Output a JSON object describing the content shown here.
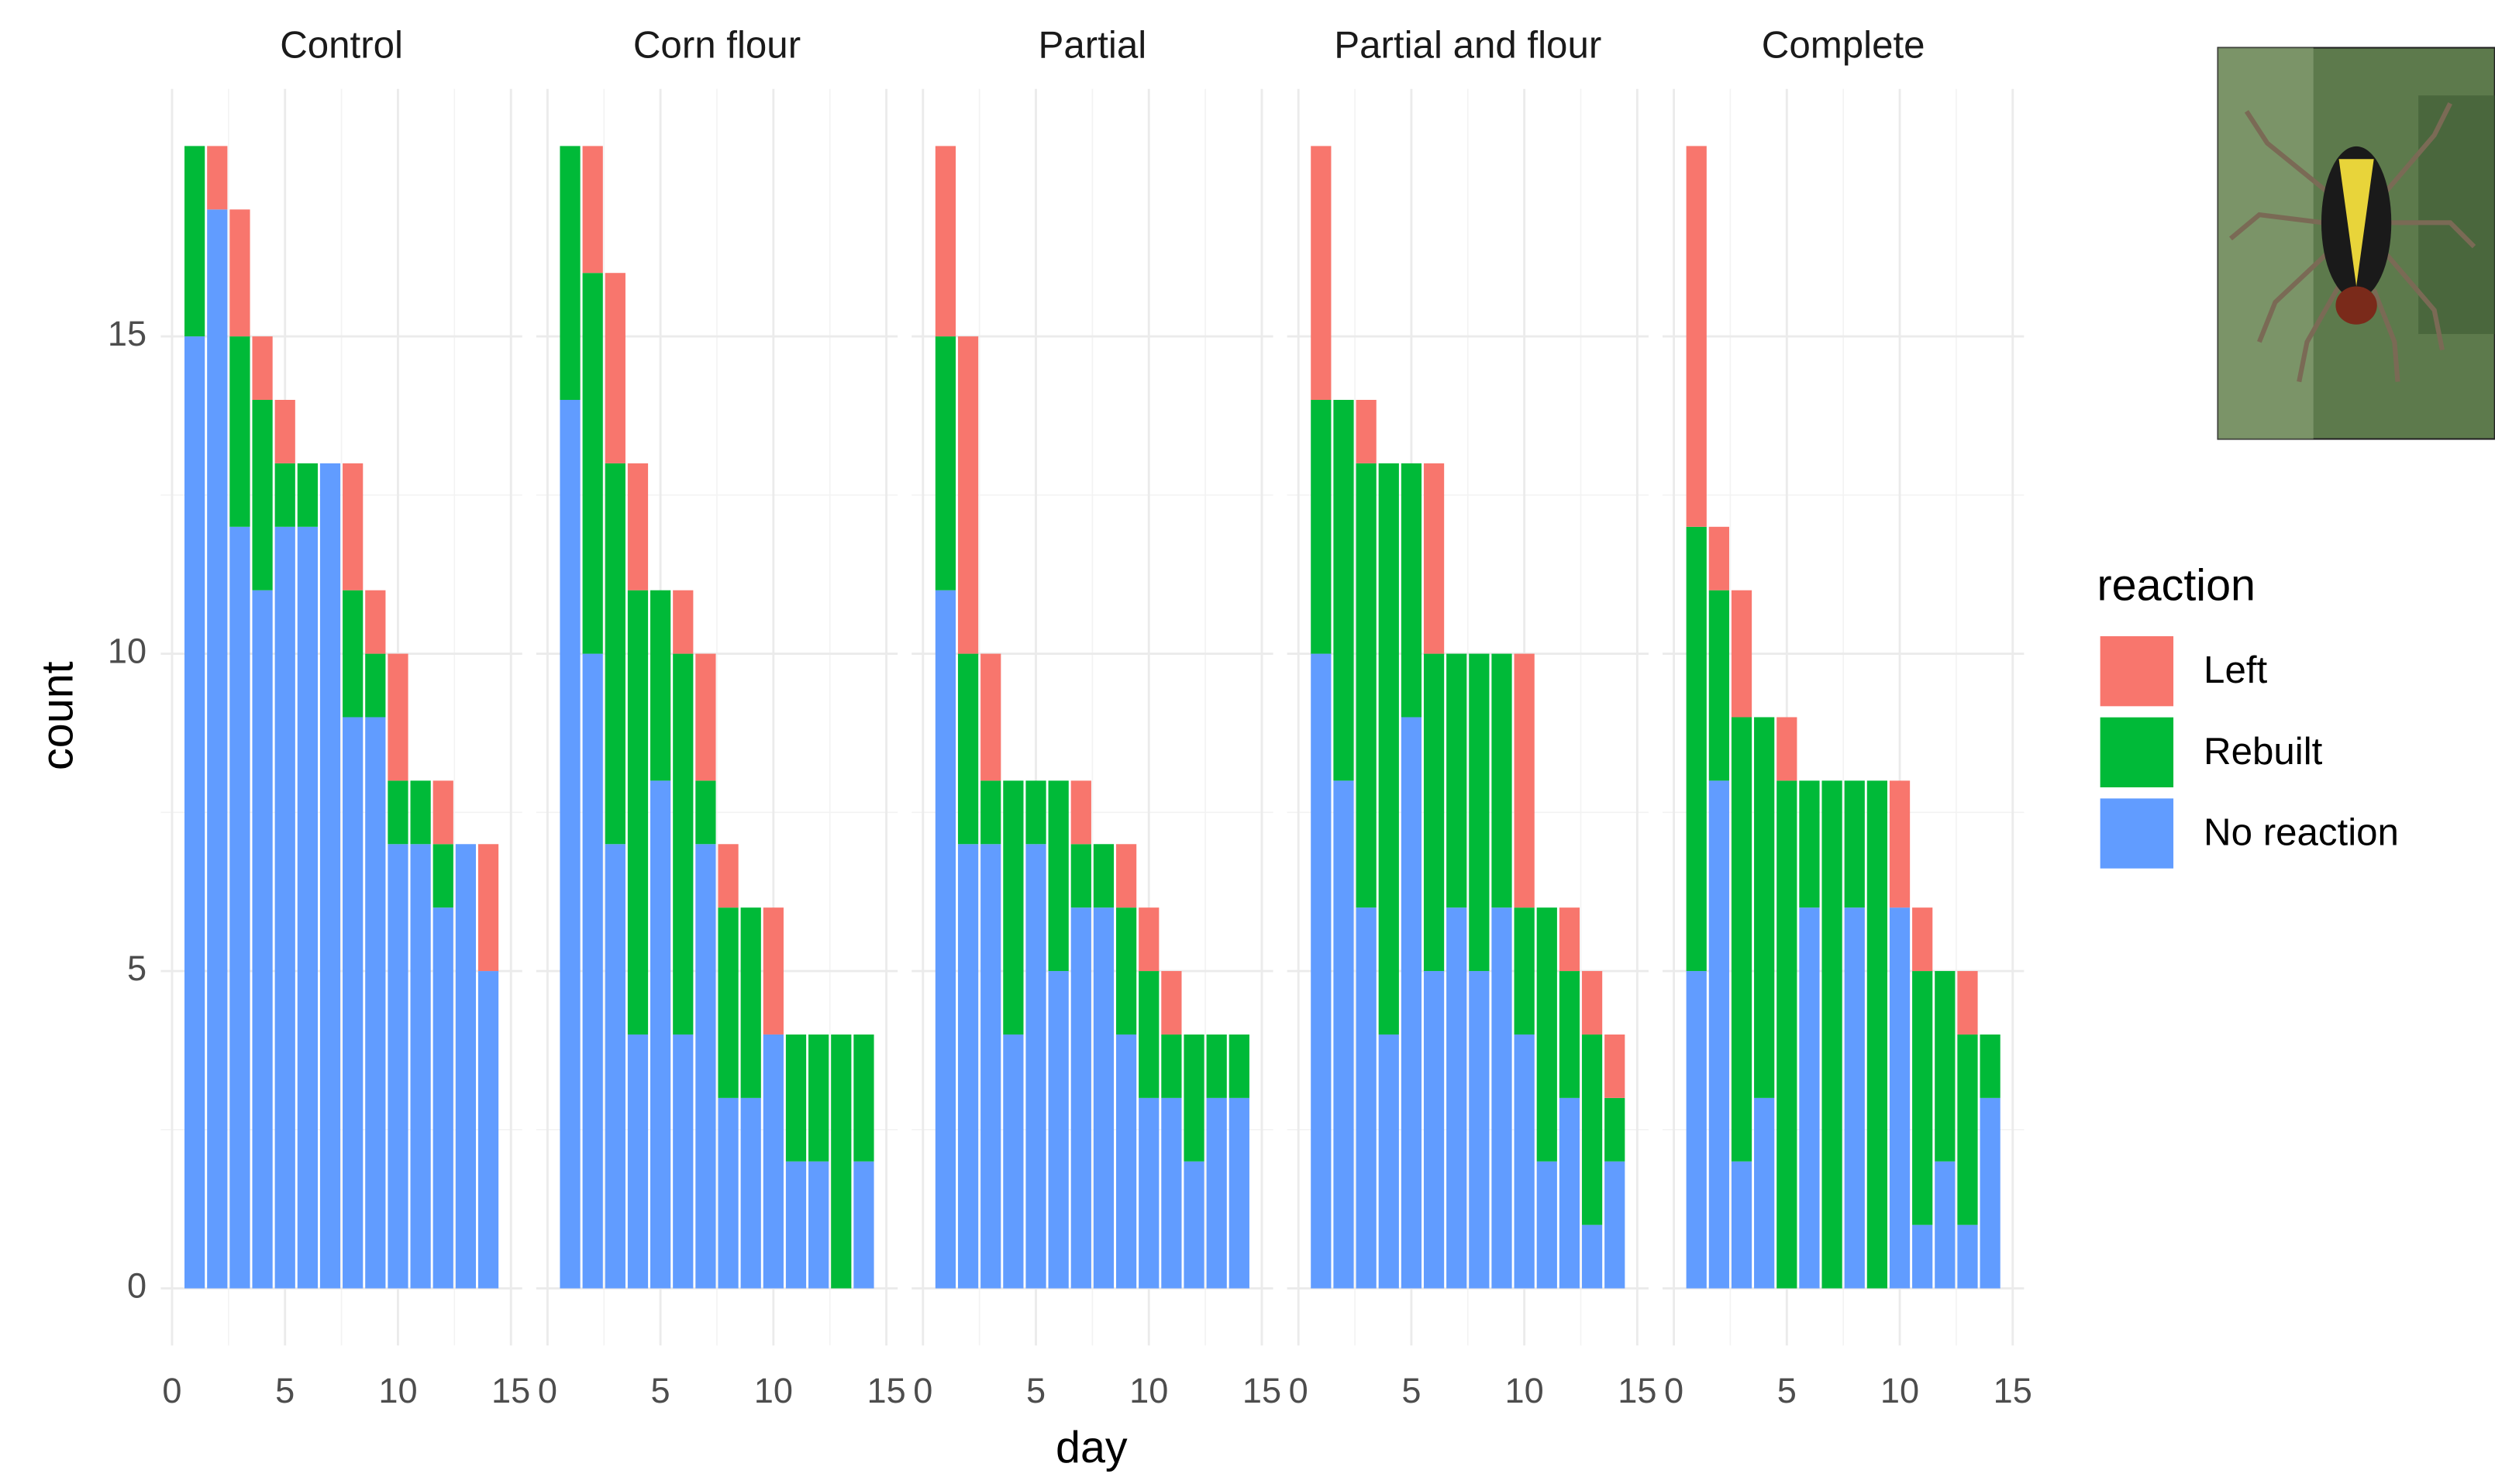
{
  "chart_data": {
    "type": "bar",
    "stacked": true,
    "facets": [
      "Control",
      "Corn flour",
      "Partial",
      "Partial and flour",
      "Complete"
    ],
    "x": [
      1,
      2,
      3,
      4,
      5,
      6,
      7,
      8,
      9,
      10,
      11,
      12,
      13,
      14
    ],
    "xlabel": "day",
    "ylabel": "count",
    "legend_title": "reaction",
    "legend": "right",
    "grid": true,
    "xlim": [
      -0.5,
      15.5
    ],
    "xticks": [
      0,
      5,
      10,
      15
    ],
    "ylim": [
      -0.9,
      18.9
    ],
    "yticks": [
      0,
      5,
      10,
      15
    ],
    "series": [
      {
        "name": "Left",
        "color": "#F8766D",
        "values": [
          [
            0,
            1,
            2,
            1,
            1,
            0,
            0,
            2,
            1,
            2,
            0,
            1,
            0,
            2
          ],
          [
            0,
            2,
            3,
            2,
            0,
            1,
            2,
            1,
            0,
            2,
            0,
            0,
            0,
            0
          ],
          [
            3,
            5,
            2,
            0,
            0,
            0,
            1,
            0,
            1,
            1,
            1,
            0,
            0,
            0
          ],
          [
            4,
            0,
            1,
            0,
            0,
            3,
            0,
            0,
            0,
            4,
            0,
            1,
            1,
            1
          ],
          [
            6,
            1,
            2,
            0,
            1,
            0,
            0,
            0,
            0,
            2,
            1,
            0,
            1,
            0
          ]
        ]
      },
      {
        "name": "Rebuilt",
        "color": "#00BA38",
        "values": [
          [
            3,
            0,
            3,
            3,
            1,
            1,
            0,
            2,
            1,
            1,
            1,
            1,
            0,
            0
          ],
          [
            4,
            6,
            6,
            7,
            3,
            6,
            1,
            3,
            3,
            0,
            2,
            2,
            4,
            2
          ],
          [
            4,
            3,
            1,
            4,
            1,
            3,
            1,
            1,
            2,
            2,
            1,
            2,
            1,
            1
          ],
          [
            4,
            6,
            7,
            9,
            4,
            5,
            4,
            5,
            4,
            2,
            4,
            2,
            3,
            1
          ],
          [
            7,
            3,
            7,
            6,
            8,
            2,
            8,
            2,
            8,
            0,
            4,
            3,
            3,
            1
          ]
        ]
      },
      {
        "name": "No reaction",
        "color": "#619CFF",
        "values": [
          [
            15,
            17,
            12,
            11,
            12,
            12,
            13,
            9,
            9,
            7,
            7,
            6,
            7,
            5
          ],
          [
            14,
            10,
            7,
            4,
            8,
            4,
            7,
            3,
            3,
            4,
            2,
            2,
            0,
            2
          ],
          [
            11,
            7,
            7,
            4,
            7,
            5,
            6,
            6,
            4,
            3,
            3,
            2,
            3,
            3
          ],
          [
            10,
            8,
            6,
            4,
            9,
            5,
            6,
            5,
            6,
            4,
            2,
            3,
            1,
            2
          ],
          [
            5,
            8,
            2,
            3,
            0,
            6,
            0,
            6,
            0,
            6,
            1,
            2,
            1,
            3
          ]
        ]
      }
    ]
  }
}
